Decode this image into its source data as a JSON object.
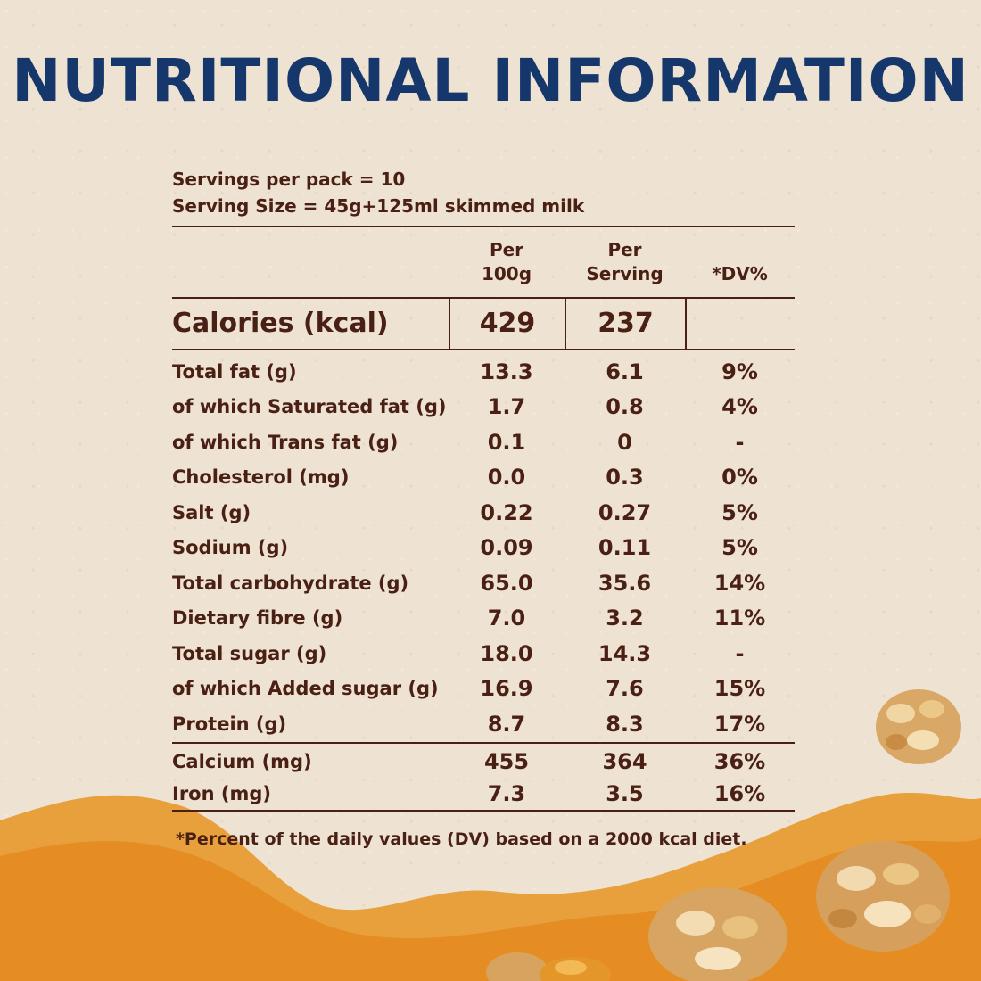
{
  "title": "NUTRITIONAL INFORMATION",
  "servings_per_pack": "Servings per pack = 10",
  "serving_size": "Serving Size = 45g+125ml skimmed milk",
  "columns": {
    "per100": [
      "Per",
      "100g"
    ],
    "perServing": [
      "Per",
      "Serving"
    ],
    "dv": "*DV%"
  },
  "calories": {
    "label": "Calories (kcal)",
    "per100": "429",
    "perServing": "237",
    "dv": ""
  },
  "nutrients": [
    {
      "label": "Total fat (g)",
      "per100": "13.3",
      "perServing": "6.1",
      "dv": "9%"
    },
    {
      "label": "of which Saturated fat (g)",
      "per100": "1.7",
      "perServing": "0.8",
      "dv": "4%"
    },
    {
      "label": "of which Trans fat (g)",
      "per100": "0.1",
      "perServing": "0",
      "dv": "-"
    },
    {
      "label": "Cholesterol (mg)",
      "per100": "0.0",
      "perServing": "0.3",
      "dv": "0%"
    },
    {
      "label": "Salt (g)",
      "per100": "0.22",
      "perServing": "0.27",
      "dv": "5%"
    },
    {
      "label": "Sodium (g)",
      "per100": "0.09",
      "perServing": "0.11",
      "dv": "5%"
    },
    {
      "label": "Total carbohydrate (g)",
      "per100": "65.0",
      "perServing": "35.6",
      "dv": "14%"
    },
    {
      "label": "Dietary fibre (g)",
      "per100": "7.0",
      "perServing": "3.2",
      "dv": "11%"
    },
    {
      "label": "Total sugar (g)",
      "per100": "18.0",
      "perServing": "14.3",
      "dv": "-"
    },
    {
      "label": "of which Added sugar (g)",
      "per100": "16.9",
      "perServing": "7.6",
      "dv": "15%"
    },
    {
      "label": "Protein (g)",
      "per100": "8.7",
      "perServing": "8.3",
      "dv": "17%"
    }
  ],
  "minerals": [
    {
      "label": "Calcium (mg)",
      "per100": "455",
      "perServing": "364",
      "dv": "36%"
    },
    {
      "label": "Iron (mg)",
      "per100": "7.3",
      "perServing": "3.5",
      "dv": "16%"
    }
  ],
  "footnote": "*Percent of the daily values (DV) based on a 2000 kcal diet.",
  "colors": {
    "title": "#15376b",
    "text": "#4a1f14",
    "background": "#eee2d2",
    "wave": "#e7962c"
  }
}
